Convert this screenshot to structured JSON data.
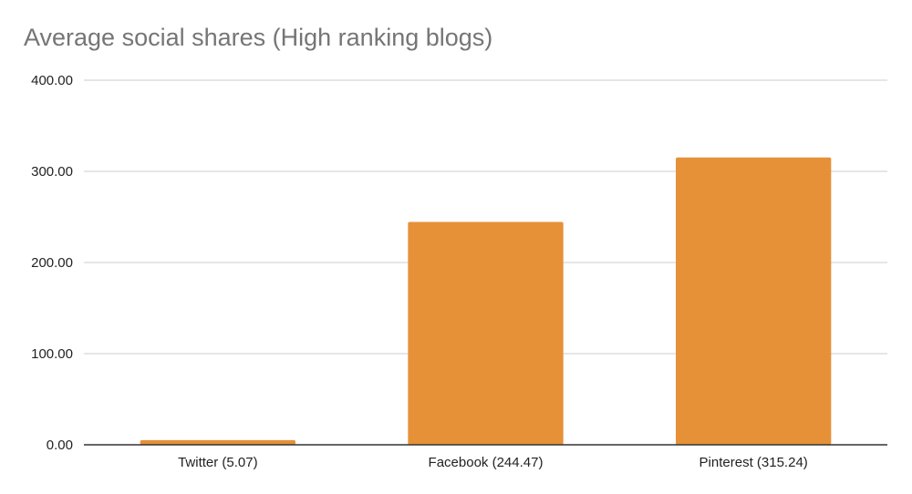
{
  "chart_data": {
    "type": "bar",
    "title": "Average social shares (High ranking blogs)",
    "xlabel": "",
    "ylabel": "",
    "categories": [
      "Twitter (5.07)",
      "Facebook (244.47)",
      "Pinterest (315.24)"
    ],
    "values": [
      5.07,
      244.47,
      315.24
    ],
    "ylim": [
      0,
      400
    ],
    "yticks": [
      0,
      100,
      200,
      300,
      400
    ],
    "ytick_labels": [
      "0.00",
      "100.00",
      "200.00",
      "300.00",
      "400.00"
    ],
    "grid": true,
    "legend": "none",
    "bar_color": "#e69138",
    "gridline_color": "#cccccc",
    "axis_color": "#333333"
  }
}
